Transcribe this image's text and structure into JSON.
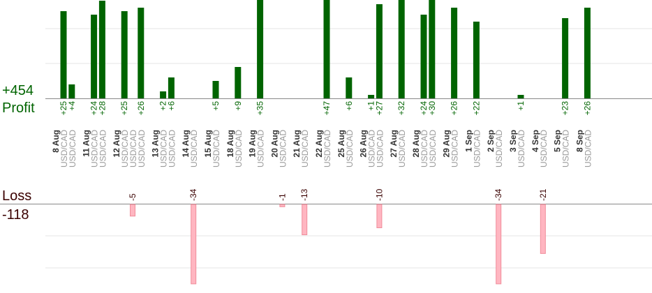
{
  "summary": {
    "profit_total": "+454",
    "profit_label": "Profit",
    "loss_label": "Loss",
    "loss_total": "-118"
  },
  "colors": {
    "profit_bar": "#006400",
    "profit_text": "#006400",
    "loss_bar": "#ffb6c1",
    "loss_bar_edge": "#f08c9a",
    "loss_text": "#3a0000",
    "date_text": "#333333",
    "pair_text": "#999999",
    "grid": "#e6e6e6",
    "axis": "#888888"
  },
  "chart_data": [
    {
      "type": "bar",
      "series_role": "profit",
      "grid": true,
      "values_visible_max": 28,
      "days": [
        {
          "date": "8 Aug",
          "trades": [
            {
              "value": 25,
              "label": "+25",
              "pair": "USD/CAD"
            },
            {
              "value": 4,
              "label": "+4",
              "pair": "USD/CAD"
            }
          ]
        },
        {
          "date": "11 Aug",
          "trades": [
            {
              "value": 24,
              "label": "+24",
              "pair": "USD/CAD"
            },
            {
              "value": 28,
              "label": "+28",
              "pair": "USD/CAD"
            }
          ]
        },
        {
          "date": "12 Aug",
          "trades": [
            {
              "value": 25,
              "label": "+25",
              "pair": "USD/CAD"
            },
            {
              "value": null,
              "label": "",
              "pair": "USD/CAD"
            },
            {
              "value": 26,
              "label": "+26",
              "pair": "USD/CAD"
            }
          ]
        },
        {
          "date": "13 Aug",
          "trades": [
            {
              "value": 2,
              "label": "+2",
              "pair": "USD/CAD"
            },
            {
              "value": 6,
              "label": "+6",
              "pair": "USD/CAD"
            }
          ]
        },
        {
          "date": "14 Aug",
          "trades": [
            {
              "value": null,
              "label": "",
              "pair": "USD/CAD"
            }
          ]
        },
        {
          "date": "15 Aug",
          "trades": [
            {
              "value": 5,
              "label": "+5",
              "pair": "USD/CAD"
            }
          ]
        },
        {
          "date": "18 Aug",
          "trades": [
            {
              "value": 9,
              "label": "+9",
              "pair": "USD/CAD"
            }
          ]
        },
        {
          "date": "19 Aug",
          "trades": [
            {
              "value": 35,
              "label": "+35",
              "pair": "USD/CAD"
            }
          ]
        },
        {
          "date": "20 Aug",
          "trades": [
            {
              "value": null,
              "label": "",
              "pair": "USD/CAD"
            }
          ]
        },
        {
          "date": "21 Aug",
          "trades": [
            {
              "value": null,
              "label": "",
              "pair": "USD/CAD"
            }
          ]
        },
        {
          "date": "22 Aug",
          "trades": [
            {
              "value": 47,
              "label": "+47",
              "pair": "USD/CAD"
            }
          ]
        },
        {
          "date": "25 Aug",
          "trades": [
            {
              "value": 6,
              "label": "+6",
              "pair": "USD/CAD"
            }
          ]
        },
        {
          "date": "26 Aug",
          "trades": [
            {
              "value": 1,
              "label": "+1",
              "pair": "USD/CAD"
            },
            {
              "value": 27,
              "label": "+27",
              "pair": "USD/CAD"
            }
          ]
        },
        {
          "date": "27 Aug",
          "trades": [
            {
              "value": 32,
              "label": "+32",
              "pair": "USD/CAD"
            }
          ]
        },
        {
          "date": "28 Aug",
          "trades": [
            {
              "value": 24,
              "label": "+24",
              "pair": "USD/CAD"
            },
            {
              "value": 30,
              "label": "+30",
              "pair": "USD/CAD"
            }
          ]
        },
        {
          "date": "29 Aug",
          "trades": [
            {
              "value": 26,
              "label": "+26",
              "pair": "USD/CAD"
            }
          ]
        },
        {
          "date": "1 Sep",
          "trades": [
            {
              "value": 22,
              "label": "+22",
              "pair": "USD/CAD"
            }
          ]
        },
        {
          "date": "2 Sep",
          "trades": [
            {
              "value": null,
              "label": "",
              "pair": "USD/CAD"
            }
          ]
        },
        {
          "date": "3 Sep",
          "trades": [
            {
              "value": 1,
              "label": "+1",
              "pair": "USD/CAD"
            }
          ]
        },
        {
          "date": "4 Sep",
          "trades": [
            {
              "value": null,
              "label": "",
              "pair": "USD/CAD"
            }
          ]
        },
        {
          "date": "5 Sep",
          "trades": [
            {
              "value": 23,
              "label": "+23",
              "pair": "USD/CAD"
            }
          ]
        },
        {
          "date": "8 Sep",
          "trades": [
            {
              "value": 26,
              "label": "+26",
              "pair": "USD/CAD"
            }
          ]
        }
      ]
    },
    {
      "type": "bar",
      "series_role": "loss",
      "grid": true,
      "trades": [
        {
          "date": "12 Aug",
          "value": -5,
          "label": "-5"
        },
        {
          "date": "14 Aug",
          "value": -34,
          "label": "-34"
        },
        {
          "date": "20 Aug",
          "value": -1,
          "label": "-1"
        },
        {
          "date": "21 Aug",
          "value": -13,
          "label": "-13"
        },
        {
          "date": "26 Aug",
          "value": -10,
          "label": "-10"
        },
        {
          "date": "2 Sep",
          "value": -34,
          "label": "-34"
        },
        {
          "date": "4 Sep",
          "value": -21,
          "label": "-21"
        }
      ]
    }
  ]
}
